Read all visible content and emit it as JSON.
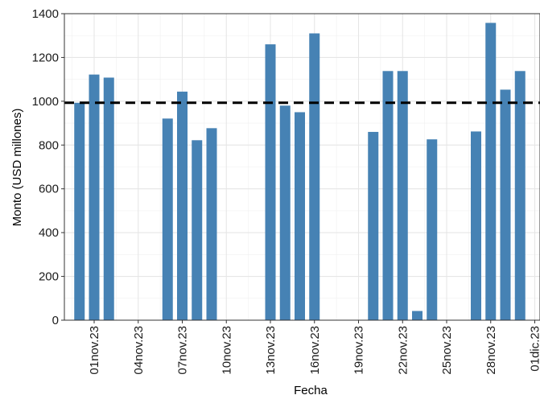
{
  "chart_data": {
    "type": "bar",
    "xlabel": "Fecha",
    "ylabel": "Monto (USD millones)",
    "ylim": [
      0,
      1400
    ],
    "yticks": [
      0,
      200,
      400,
      600,
      800,
      1000,
      1200,
      1400
    ],
    "x_range": [
      "2023-10-29",
      "2023-12-01"
    ],
    "xticks": [
      {
        "date": "2023-11-01",
        "label": "01nov.23"
      },
      {
        "date": "2023-11-04",
        "label": "04nov.23"
      },
      {
        "date": "2023-11-07",
        "label": "07nov.23"
      },
      {
        "date": "2023-11-10",
        "label": "10nov.23"
      },
      {
        "date": "2023-11-13",
        "label": "13nov.23"
      },
      {
        "date": "2023-11-16",
        "label": "16nov.23"
      },
      {
        "date": "2023-11-19",
        "label": "19nov.23"
      },
      {
        "date": "2023-11-22",
        "label": "22nov.23"
      },
      {
        "date": "2023-11-25",
        "label": "25nov.23"
      },
      {
        "date": "2023-11-28",
        "label": "28nov.23"
      },
      {
        "date": "2023-12-01",
        "label": "01dic.23"
      }
    ],
    "reference_line": {
      "value": 993,
      "style": "dashed",
      "color": "#000000"
    },
    "grid": true,
    "bar_color": "#4682B4",
    "series": [
      {
        "values": [
          {
            "x": "2023-10-31",
            "y": 993
          },
          {
            "x": "2023-11-01",
            "y": 1122
          },
          {
            "x": "2023-11-02",
            "y": 1108
          },
          {
            "x": "2023-11-06",
            "y": 921
          },
          {
            "x": "2023-11-07",
            "y": 1044
          },
          {
            "x": "2023-11-08",
            "y": 822
          },
          {
            "x": "2023-11-09",
            "y": 877
          },
          {
            "x": "2023-11-13",
            "y": 1260
          },
          {
            "x": "2023-11-14",
            "y": 980
          },
          {
            "x": "2023-11-15",
            "y": 950
          },
          {
            "x": "2023-11-16",
            "y": 1310
          },
          {
            "x": "2023-11-20",
            "y": 860
          },
          {
            "x": "2023-11-21",
            "y": 1138
          },
          {
            "x": "2023-11-22",
            "y": 1138
          },
          {
            "x": "2023-11-23",
            "y": 42
          },
          {
            "x": "2023-11-24",
            "y": 826
          },
          {
            "x": "2023-11-27",
            "y": 862
          },
          {
            "x": "2023-11-28",
            "y": 1358
          },
          {
            "x": "2023-11-29",
            "y": 1053
          },
          {
            "x": "2023-11-30",
            "y": 1138
          }
        ]
      }
    ]
  }
}
